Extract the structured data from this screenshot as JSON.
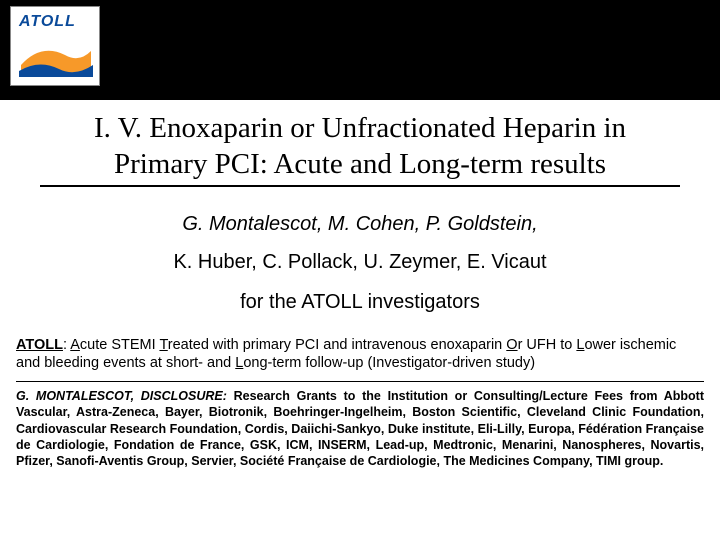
{
  "logo": {
    "text": "ATOLL"
  },
  "title": {
    "line1": "I. V. Enoxaparin or Unfractionated Heparin in",
    "line2": "Primary PCI: Acute and Long-term results"
  },
  "authors": {
    "line1_html": "<i>G. Montalescot,</i> M. Cohen, P. Goldstein,",
    "line2": "K. Huber, C. Pollack, U. Zeymer, E. Vicaut"
  },
  "for_line": "for the ATOLL investigators",
  "atoll_def": {
    "label": "ATOLL",
    "body_html": ": <span class=\"u\">A</span>cute STEMI <span class=\"u\">T</span>reated with primary PCI and intravenous enoxaparin <span class=\"u\">O</span>r UFH to <span class=\"u\">L</span>ower ischemic and bleeding events at short- and <span class=\"u\">L</span>ong-term follow-up  (Investigator-driven study)"
  },
  "disclosure": {
    "lead_name": "G. M",
    "lead_rest": "ONTALESCOT, DISCLOSURE:",
    "body": "  Research Grants to the Institution or Consulting/Lecture Fees from Abbott Vascular, Astra-Zeneca, Bayer, Biotronik, Boehringer-Ingelheim, Boston Scientific, Cleveland Clinic Foundation, Cardiovascular Research Foundation, Cordis, Daiichi-Sankyo, Duke institute, Eli-Lilly, Europa, Fédération Française de Cardiologie, Fondation de France, GSK, ICM, INSERM, Lead-up, Medtronic, Menarini, Nanospheres, Novartis, Pfizer, Sanofi-Aventis Group, Servier, Société Française de Cardiologie, The Medicines Company, TIMI group."
  },
  "colors": {
    "header_bg": "#000000",
    "page_bg": "#ffffff",
    "logo_blue": "#0a4a9a",
    "logo_orange": "#f7941d"
  }
}
